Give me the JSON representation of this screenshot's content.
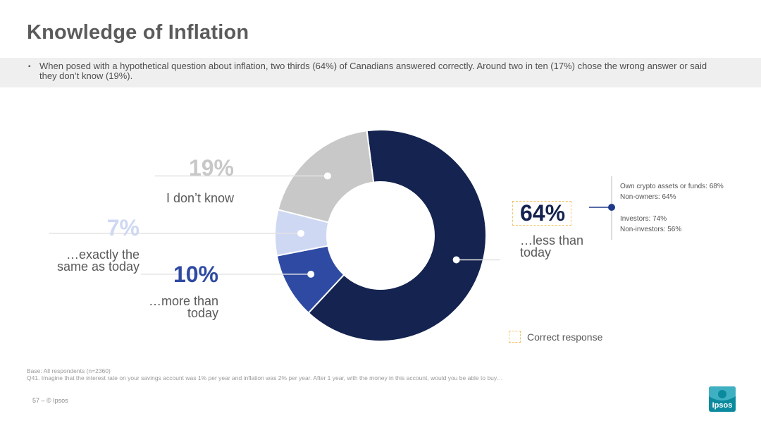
{
  "page": {
    "title": "Knowledge of Inflation",
    "summary_bullet": "▪",
    "summary": "When posed with a hypothetical question about inflation, two thirds (64%) of Canadians answered correctly.  Around two in ten (17%) chose the wrong answer or said they don’t know (19%).",
    "legend_label": "Correct response",
    "footer_base": "Base: All respondents (n=2360)",
    "footer_question": "Q41. Imagine that the interest rate on your savings account was 1% per year and inflation was 2% per year. After 1 year, with the money in this account, would you be able to buy…",
    "footer_page": "57 –   © Ipsos",
    "logo_text": "Ipsos"
  },
  "subgroups": {
    "crypto_owners": "Own crypto assets or funds: 68%",
    "non_owners": "Non-owners: 64%",
    "investors": "Investors: 74%",
    "non_investors": "Non-investors: 56%"
  },
  "chart_data": {
    "type": "pie",
    "donut": true,
    "slices": [
      {
        "pct_label": "64%",
        "value": 64,
        "label": "…less than today",
        "color": "#14234f",
        "correct": true
      },
      {
        "pct_label": "10%",
        "value": 10,
        "label": "…more than today",
        "color": "#2e4aa2"
      },
      {
        "pct_label": "7%",
        "value": 7,
        "label": "…exactly the same as today",
        "color": "#cfd8f3"
      },
      {
        "pct_label": "19%",
        "value": 19,
        "label": "I don’t know",
        "color": "#c8c8c8"
      }
    ]
  }
}
